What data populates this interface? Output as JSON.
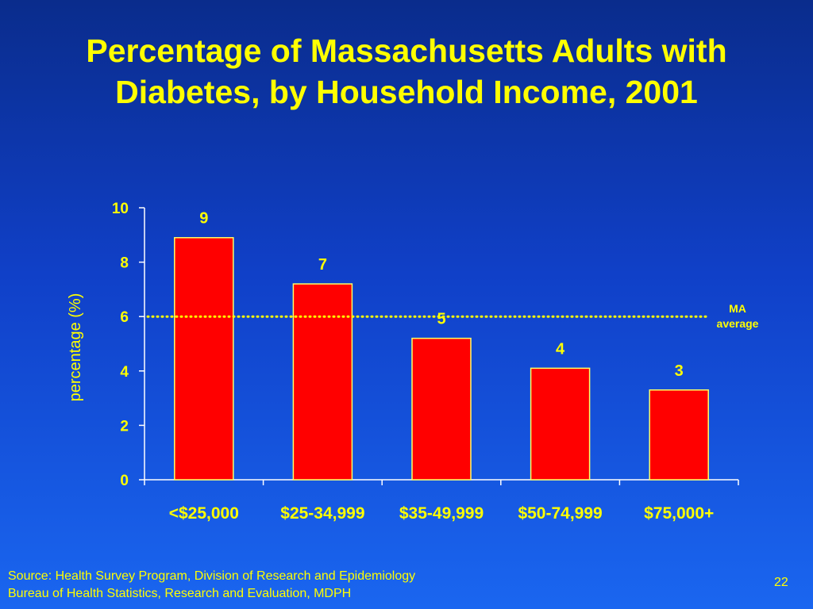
{
  "slide": {
    "title_line1": "Percentage of Massachusetts Adults with",
    "title_line2": "Diabetes, by Household Income, 2001",
    "source_line1": "Source: Health Survey Program, Division of Research and Epidemiology",
    "source_line2": "Bureau of Health Statistics, Research and Evaluation, MDPH",
    "page_number": "22"
  },
  "colors": {
    "text": "#ffff00",
    "bar_fill": "#ff0000",
    "bar_stroke": "#ffff66",
    "axis": "#ffffff",
    "reference_line": "#ffff00"
  },
  "chart_data": {
    "type": "bar",
    "title": "",
    "xlabel": "",
    "ylabel": "percentage (%)",
    "ylim": [
      0,
      10
    ],
    "yticks": [
      0,
      2,
      4,
      6,
      8,
      10
    ],
    "grid": false,
    "categories": [
      "<$25,000",
      "$25-34,999",
      "$35-49,999",
      "$50-74,999",
      "$75,000+"
    ],
    "values": [
      8.9,
      7.2,
      5.2,
      4.1,
      3.3
    ],
    "data_labels": [
      "9",
      "7",
      "5",
      "4",
      "3"
    ],
    "reference_line": {
      "value": 6.0,
      "style": "dotted",
      "label_line1": "MA",
      "label_line2": "average"
    }
  }
}
